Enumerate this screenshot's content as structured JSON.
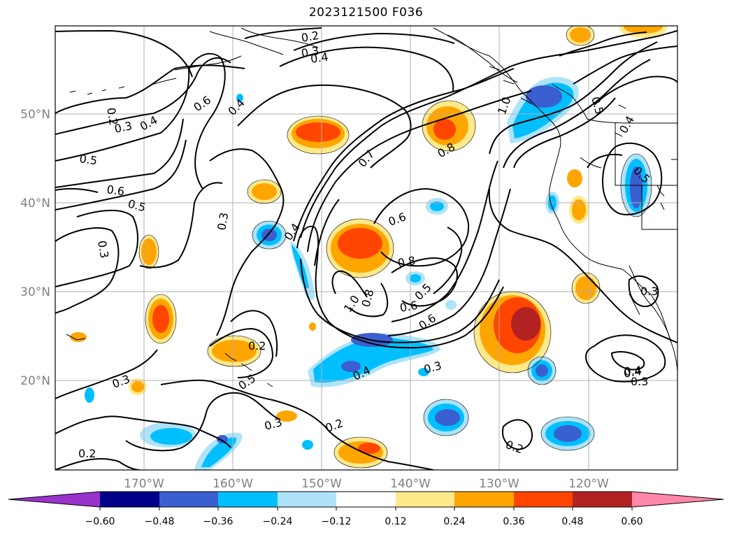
{
  "title": "2023121500 F036",
  "axes": {
    "lat_labels": [
      "50°N",
      "40°N",
      "30°N",
      "20°N"
    ],
    "lon_labels": [
      "170°W",
      "160°W",
      "150°W",
      "140°W",
      "130°W",
      "120°W"
    ]
  },
  "colorbar": {
    "extend": "both",
    "ticks": [
      "−0.60",
      "−0.48",
      "−0.36",
      "−0.24",
      "−0.12",
      "0.12",
      "0.24",
      "0.36",
      "0.48",
      "0.60"
    ],
    "colors": [
      "#9933cc",
      "#00008b",
      "#3a5fd0",
      "#00bfff",
      "#aee3fa",
      "#ffffff",
      "#ffe98a",
      "#ffa500",
      "#ff4500",
      "#b22222",
      "#ff88aa"
    ]
  },
  "contour_labels": [
    "0.2",
    "0.3",
    "0.4",
    "0.2",
    "0.3",
    "0.4",
    "0.6",
    "0.4",
    "0.3",
    "0.4",
    "0.5",
    "0.6",
    "0.5",
    "0.3",
    "0.7",
    "0.8",
    "1.0",
    "0.5",
    "0.4",
    "0.5",
    "0.3",
    "0.4",
    "0.6",
    "0.8",
    "0.5",
    "0.6",
    "1.0",
    "0.8",
    "0.6",
    "0.3",
    "0.5",
    "0.2",
    "0.3",
    "0.4",
    "0.2",
    "0.3",
    "0.4",
    "0.3",
    "0.2",
    "0.2"
  ]
}
